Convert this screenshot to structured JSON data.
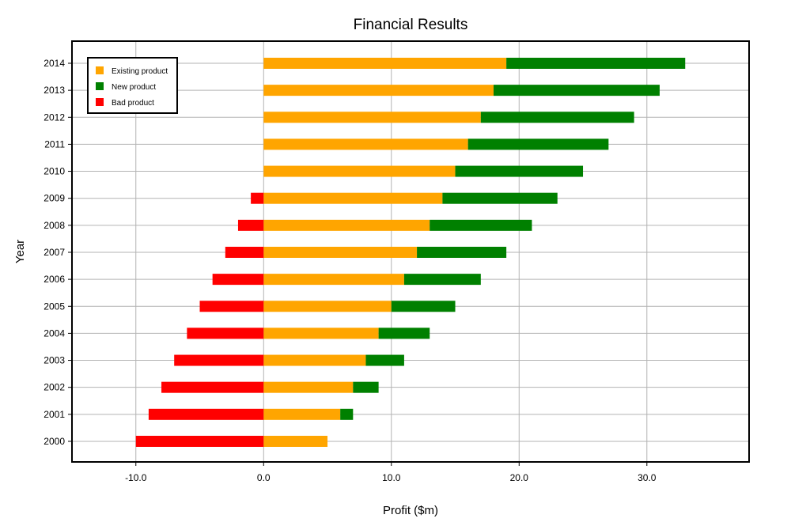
{
  "chart_data": {
    "type": "bar",
    "orientation": "horizontal",
    "stacked": true,
    "title": "Financial Results",
    "xlabel": "Profit ($m)",
    "ylabel": "Year",
    "xlim": [
      -15,
      38
    ],
    "xticks": [
      -10,
      0,
      10,
      20,
      30
    ],
    "xtick_labels": [
      "-10.0",
      "0.0",
      "10.0",
      "20.0",
      "30.0"
    ],
    "grid": true,
    "legend_position": "top-left",
    "categories": [
      "2000",
      "2001",
      "2002",
      "2003",
      "2004",
      "2005",
      "2006",
      "2007",
      "2008",
      "2009",
      "2010",
      "2011",
      "2012",
      "2013",
      "2014"
    ],
    "series": [
      {
        "name": "Existing product",
        "color": "#ffa500",
        "values": [
          5,
          6,
          7,
          8,
          9,
          10,
          11,
          12,
          13,
          14,
          15,
          16,
          17,
          18,
          19
        ]
      },
      {
        "name": "New product",
        "color": "#008000",
        "values": [
          0,
          1,
          2,
          3,
          4,
          5,
          6,
          7,
          8,
          9,
          10,
          11,
          12,
          13,
          14
        ]
      },
      {
        "name": "Bad product",
        "color": "#ff0000",
        "values": [
          -10,
          -9,
          -8,
          -7,
          -6,
          -5,
          -4,
          -3,
          -2,
          -1,
          0,
          0,
          0,
          0,
          0
        ]
      }
    ]
  }
}
